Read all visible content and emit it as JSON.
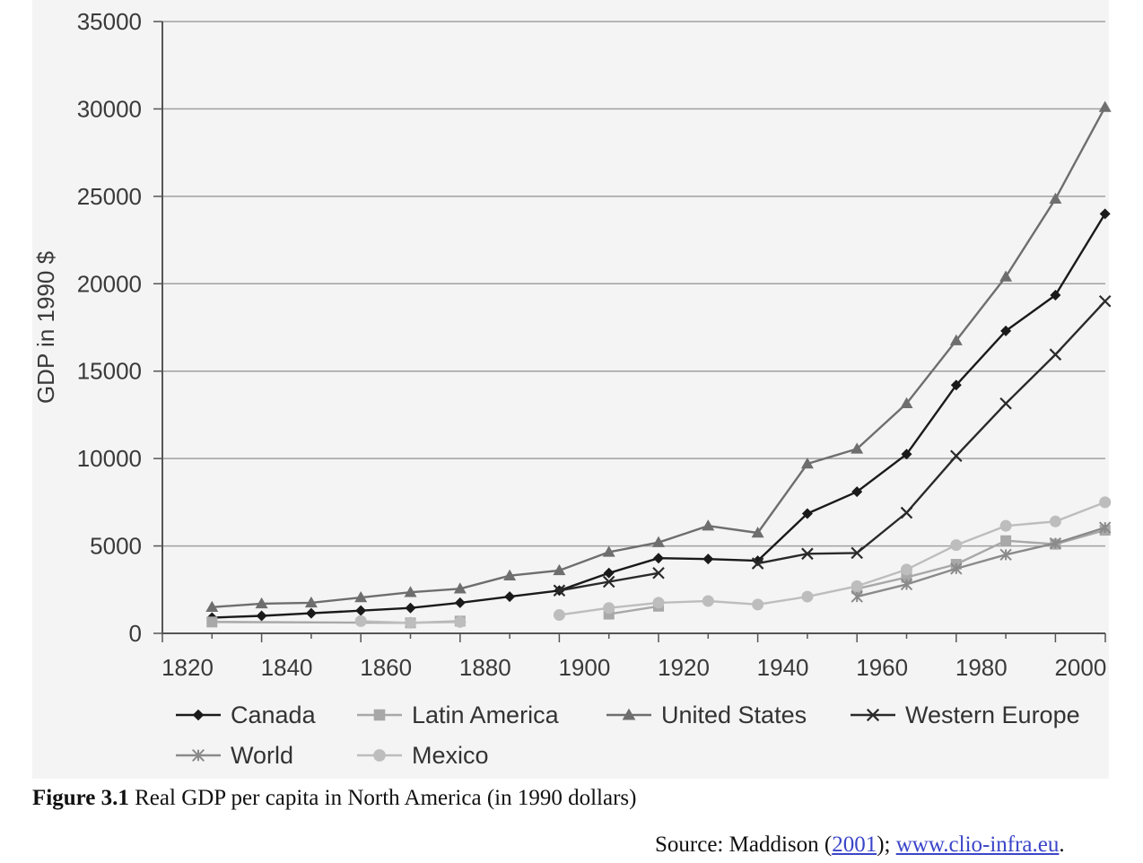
{
  "chart_data": {
    "type": "line",
    "ylabel": "GDP in 1990 $",
    "xlabel": "",
    "title": "",
    "xlim": [
      1820,
      2000
    ],
    "ylim": [
      0,
      35000
    ],
    "xticks": [
      1820,
      1840,
      1860,
      1880,
      1900,
      1920,
      1940,
      1960,
      1980,
      2000
    ],
    "yticks": [
      0,
      5000,
      10000,
      15000,
      20000,
      25000,
      30000,
      35000
    ],
    "grid": "horizontal",
    "legend_position": "bottom",
    "series": [
      {
        "name": "Canada",
        "marker": "diamond",
        "color": "#1a1a1a",
        "points": [
          [
            1830,
            900
          ],
          [
            1840,
            1000
          ],
          [
            1850,
            1150
          ],
          [
            1860,
            1300
          ],
          [
            1870,
            1450
          ],
          [
            1880,
            1750
          ],
          [
            1890,
            2100
          ],
          [
            1900,
            2450
          ],
          [
            1910,
            3450
          ],
          [
            1920,
            4300
          ],
          [
            1930,
            4250
          ],
          [
            1940,
            4150
          ],
          [
            1950,
            6850
          ],
          [
            1960,
            8100
          ],
          [
            1970,
            10250
          ],
          [
            1980,
            14200
          ],
          [
            1990,
            17300
          ],
          [
            2000,
            19350
          ],
          [
            2010,
            24000
          ]
        ]
      },
      {
        "name": "Latin America",
        "marker": "square",
        "color": "#a8a8a8",
        "segments": [
          [
            [
              1830,
              650
            ],
            [
              1870,
              600
            ],
            [
              1880,
              700
            ]
          ],
          [
            [
              1910,
              1100
            ],
            [
              1920,
              1550
            ]
          ],
          [
            [
              1960,
              2550
            ],
            [
              1970,
              3200
            ],
            [
              1980,
              3950
            ],
            [
              1990,
              5300
            ],
            [
              2000,
              5100
            ],
            [
              2010,
              5900
            ]
          ]
        ]
      },
      {
        "name": "United States",
        "marker": "triangle",
        "color": "#6e6e6e",
        "points": [
          [
            1830,
            1500
          ],
          [
            1840,
            1700
          ],
          [
            1850,
            1750
          ],
          [
            1860,
            2050
          ],
          [
            1870,
            2350
          ],
          [
            1880,
            2550
          ],
          [
            1890,
            3300
          ],
          [
            1900,
            3600
          ],
          [
            1910,
            4650
          ],
          [
            1920,
            5200
          ],
          [
            1930,
            6150
          ],
          [
            1940,
            5750
          ],
          [
            1950,
            9700
          ],
          [
            1960,
            10550
          ],
          [
            1970,
            13150
          ],
          [
            1980,
            16750
          ],
          [
            1990,
            20400
          ],
          [
            2000,
            24850
          ],
          [
            2010,
            30100
          ]
        ]
      },
      {
        "name": "Western Europe",
        "marker": "x",
        "color": "#2a2a2a",
        "segments": [
          [
            [
              1900,
              2450
            ],
            [
              1910,
              2950
            ],
            [
              1920,
              3450
            ]
          ],
          [
            [
              1940,
              4000
            ],
            [
              1950,
              4550
            ],
            [
              1960,
              4600
            ],
            [
              1970,
              6900
            ],
            [
              1980,
              10150
            ],
            [
              1990,
              13150
            ],
            [
              2000,
              15950
            ],
            [
              2010,
              19000
            ]
          ]
        ]
      },
      {
        "name": "World",
        "marker": "asterisk",
        "color": "#8a8a8a",
        "points": [
          [
            1960,
            2100
          ],
          [
            1970,
            2800
          ],
          [
            1980,
            3700
          ],
          [
            1990,
            4500
          ],
          [
            2000,
            5150
          ],
          [
            2010,
            6050
          ]
        ]
      },
      {
        "name": "Mexico",
        "marker": "circle",
        "color": "#bdbdbd",
        "segments": [
          [
            [
              1860,
              700
            ],
            [
              1870,
              600
            ],
            [
              1880,
              650
            ]
          ],
          [
            [
              1900,
              1050
            ],
            [
              1910,
              1450
            ],
            [
              1920,
              1750
            ],
            [
              1930,
              1850
            ],
            [
              1940,
              1650
            ],
            [
              1950,
              2100
            ],
            [
              1960,
              2700
            ],
            [
              1970,
              3650
            ],
            [
              1980,
              5050
            ],
            [
              1990,
              6150
            ],
            [
              2000,
              6400
            ],
            [
              2010,
              7500
            ]
          ]
        ]
      }
    ]
  },
  "caption": {
    "figure_number": "Figure 3.1",
    "text": " Real GDP per capita in North America (in 1990 dollars)"
  },
  "source": {
    "prefix": "Source: Maddison (",
    "year_link": "2001",
    "middle": "); ",
    "url_link": "www.clio-infra.eu",
    "suffix": "."
  }
}
